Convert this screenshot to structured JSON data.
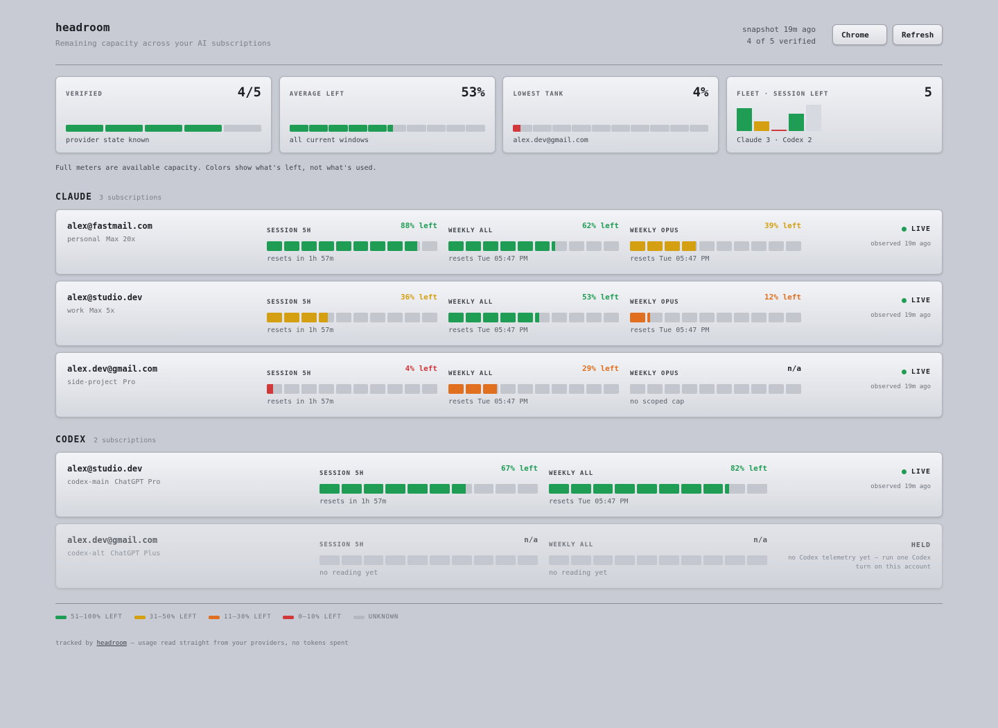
{
  "app": {
    "title": "headroom",
    "subtitle": "Remaining capacity across your AI subscriptions",
    "snapshot": "snapshot 19m ago",
    "verified_line": "4 of 5 verified",
    "browser_button": "Chrome",
    "refresh_button": "Refresh"
  },
  "colors": {
    "green": "#1f9d55",
    "yellow": "#d4a011",
    "orange": "#e07020",
    "red": "#d0383a",
    "empty": "#c3c6cd",
    "unknown": "#b4b7be"
  },
  "summary": [
    {
      "label": "VERIFIED",
      "value": "4/5",
      "foot": "provider state known",
      "kind": "segments",
      "segments": 5,
      "filled": 4,
      "color": "green"
    },
    {
      "label": "AVERAGE LEFT",
      "value": "53%",
      "foot": "all current windows",
      "kind": "meter",
      "segments": 10,
      "fraction": 0.53,
      "color": "green"
    },
    {
      "label": "LOWEST TANK",
      "value": "4%",
      "foot": "alex.dev@gmail.com",
      "kind": "meter",
      "segments": 10,
      "fraction": 0.04,
      "color": "red"
    },
    {
      "label": "FLEET · SESSION LEFT",
      "value": "5",
      "foot": "Claude 3 · Codex 2",
      "kind": "fleet",
      "bars": [
        {
          "fraction": 0.88,
          "color": "green"
        },
        {
          "fraction": 0.36,
          "color": "yellow"
        },
        {
          "fraction": 0.04,
          "color": "red"
        },
        {
          "fraction": 0.67,
          "color": "green"
        },
        {
          "fraction": 1.0,
          "color": "unknown"
        }
      ]
    }
  ],
  "note": "Full meters are available capacity. Colors show what's left, not what's used.",
  "sections": [
    {
      "title": "CLAUDE",
      "count": "3 subscriptions",
      "accounts": [
        {
          "email": "alex@fastmail.com",
          "tag": "personal",
          "plan": "Max 20x",
          "status": "LIVE",
          "observed": "observed 19m ago",
          "held": false,
          "meters": [
            {
              "label": "SESSION 5H",
              "pct": "88% left",
              "fraction": 0.88,
              "color": "green",
              "foot": "resets in 1h 57m"
            },
            {
              "label": "WEEKLY ALL",
              "pct": "62% left",
              "fraction": 0.62,
              "color": "green",
              "foot": "resets Tue 05:47 PM"
            },
            {
              "label": "WEEKLY OPUS",
              "pct": "39% left",
              "fraction": 0.39,
              "color": "yellow",
              "foot": "resets Tue 05:47 PM"
            }
          ]
        },
        {
          "email": "alex@studio.dev",
          "tag": "work",
          "plan": "Max 5x",
          "status": "LIVE",
          "observed": "observed 19m ago",
          "held": false,
          "meters": [
            {
              "label": "SESSION 5H",
              "pct": "36% left",
              "fraction": 0.36,
              "color": "yellow",
              "foot": "resets in 1h 57m"
            },
            {
              "label": "WEEKLY ALL",
              "pct": "53% left",
              "fraction": 0.53,
              "color": "green",
              "foot": "resets Tue 05:47 PM"
            },
            {
              "label": "WEEKLY OPUS",
              "pct": "12% left",
              "fraction": 0.12,
              "color": "orange",
              "foot": "resets Tue 05:47 PM"
            }
          ]
        },
        {
          "email": "alex.dev@gmail.com",
          "tag": "side-project",
          "plan": "Pro",
          "status": "LIVE",
          "observed": "observed 19m ago",
          "held": false,
          "meters": [
            {
              "label": "SESSION 5H",
              "pct": "4% left",
              "fraction": 0.04,
              "color": "red",
              "foot": "resets in 1h 57m"
            },
            {
              "label": "WEEKLY ALL",
              "pct": "29% left",
              "fraction": 0.29,
              "color": "orange",
              "foot": "resets Tue 05:47 PM"
            },
            {
              "label": "WEEKLY OPUS",
              "pct": "n/a",
              "fraction": 0,
              "color": "none",
              "foot": "no scoped cap"
            }
          ]
        }
      ]
    },
    {
      "title": "CODEX",
      "count": "2 subscriptions",
      "accounts": [
        {
          "email": "alex@studio.dev",
          "tag": "codex-main",
          "plan": "ChatGPT Pro",
          "status": "LIVE",
          "observed": "observed 19m ago",
          "held": false,
          "meters": [
            {
              "label": "SESSION 5H",
              "pct": "67% left",
              "fraction": 0.67,
              "color": "green",
              "foot": "resets in 1h 57m"
            },
            {
              "label": "WEEKLY ALL",
              "pct": "82% left",
              "fraction": 0.82,
              "color": "green",
              "foot": "resets Tue 05:47 PM"
            }
          ]
        },
        {
          "email": "alex.dev@gmail.com",
          "tag": "codex-alt",
          "plan": "ChatGPT Plus",
          "status": "HELD",
          "observed": "no Codex telemetry yet — run one Codex turn on this account",
          "held": true,
          "meters": [
            {
              "label": "SESSION 5H",
              "pct": "n/a",
              "fraction": 0,
              "color": "none",
              "foot": "no reading yet"
            },
            {
              "label": "WEEKLY ALL",
              "pct": "n/a",
              "fraction": 0,
              "color": "none",
              "foot": "no reading yet"
            }
          ]
        }
      ]
    }
  ],
  "legend": [
    {
      "label": "51–100% LEFT",
      "color": "green"
    },
    {
      "label": "31–50% LEFT",
      "color": "yellow"
    },
    {
      "label": "11–30% LEFT",
      "color": "orange"
    },
    {
      "label": "0–10% LEFT",
      "color": "red"
    },
    {
      "label": "UNKNOWN",
      "color": "unknown"
    }
  ],
  "footer": {
    "prefix": "tracked by",
    "link": "headroom",
    "suffix": "— usage read straight from your providers, no tokens spent"
  }
}
